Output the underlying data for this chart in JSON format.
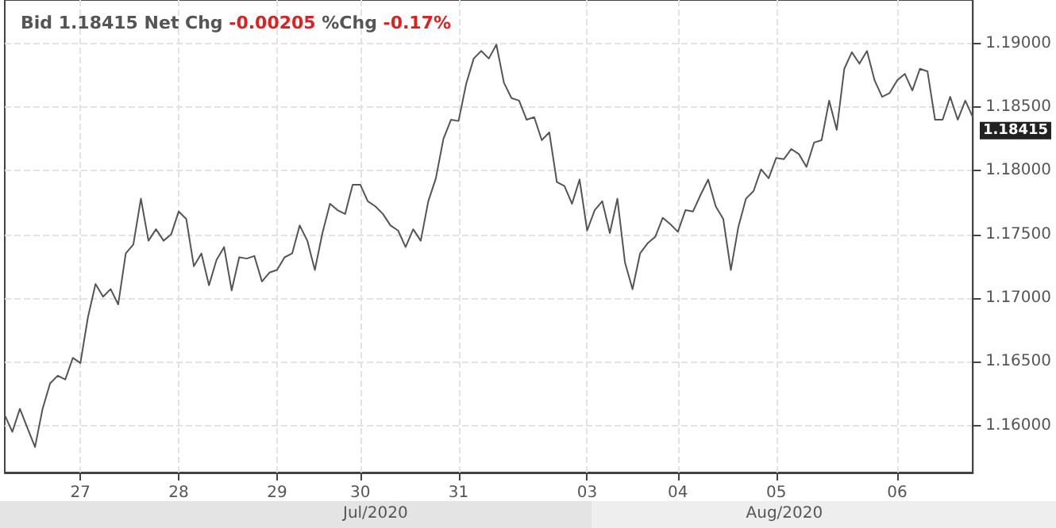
{
  "chart_data": {
    "type": "line",
    "title": "Bid 1.18415 Net Chg -0.00205 %Chg -0.17%",
    "categories": [
      null,
      null,
      null,
      null,
      null,
      null,
      null,
      null,
      null,
      null,
      "27",
      null,
      null,
      null,
      null,
      null,
      null,
      null,
      null,
      null,
      null,
      null,
      null,
      "28",
      null,
      null,
      null,
      null,
      null,
      null,
      null,
      null,
      null,
      null,
      null,
      null,
      "29",
      null,
      null,
      null,
      null,
      null,
      null,
      null,
      null,
      null,
      null,
      "30",
      null,
      null,
      null,
      null,
      null,
      null,
      null,
      null,
      null,
      null,
      null,
      null,
      "31",
      null,
      null,
      null,
      null,
      null,
      null,
      null,
      null,
      null,
      null,
      null,
      null,
      null,
      null,
      null,
      null,
      "03",
      null,
      null,
      null,
      null,
      null,
      null,
      null,
      null,
      null,
      null,
      null,
      "04",
      null,
      null,
      null,
      null,
      null,
      null,
      null,
      null,
      null,
      null,
      null,
      null,
      "05",
      null,
      null,
      null,
      null,
      null,
      null,
      null,
      null,
      null,
      null,
      null,
      null,
      null,
      null,
      null,
      "06",
      null,
      null,
      null,
      null,
      null,
      null,
      null,
      null,
      null,
      null
    ],
    "series": [
      {
        "color": "#555555",
        "values": [
          1.1608,
          1.1595,
          1.1613,
          1.1598,
          1.1583,
          1.1613,
          1.1633,
          1.1639,
          1.1636,
          1.1653,
          1.1649,
          1.1685,
          1.1711,
          1.1701,
          1.1707,
          1.1695,
          1.1735,
          1.1742,
          1.1778,
          1.1745,
          1.1754,
          1.1745,
          1.175,
          1.1768,
          1.1762,
          1.1725,
          1.1735,
          1.171,
          1.173,
          1.174,
          1.1706,
          1.1732,
          1.1731,
          1.1733,
          1.1713,
          1.172,
          1.1722,
          1.1732,
          1.1735,
          1.1757,
          1.1745,
          1.1722,
          1.1751,
          1.1774,
          1.1769,
          1.1766,
          1.1789,
          1.1789,
          1.1776,
          1.1772,
          1.1766,
          1.1757,
          1.1753,
          1.174,
          1.1754,
          1.1745,
          1.1776,
          1.1794,
          1.1825,
          1.184,
          1.1839,
          1.1868,
          1.1888,
          1.1894,
          1.1888,
          1.1899,
          1.1869,
          1.1857,
          1.1855,
          1.184,
          1.1842,
          1.1824,
          1.183,
          1.1791,
          1.1788,
          1.1774,
          1.1793,
          1.1753,
          1.1769,
          1.1776,
          1.1751,
          1.1778,
          1.1728,
          1.1707,
          1.1735,
          1.1743,
          1.1748,
          1.1763,
          1.1758,
          1.1752,
          1.1769,
          1.1768,
          1.1781,
          1.1793,
          1.1772,
          1.1762,
          1.1722,
          1.1756,
          1.1778,
          1.1784,
          1.1801,
          1.1794,
          1.181,
          1.1809,
          1.1817,
          1.1813,
          1.1803,
          1.1822,
          1.1824,
          1.1855,
          1.1832,
          1.188,
          1.1893,
          1.1884,
          1.1894,
          1.1871,
          1.1858,
          1.1861,
          1.1871,
          1.1876,
          1.1863,
          1.188,
          1.1878,
          1.184,
          1.184,
          1.1858,
          1.184,
          1.1855,
          1.1842
        ]
      }
    ],
    "ylim": [
      1.1563,
      1.1934
    ],
    "yticks": [
      {
        "value": 1.16,
        "label": "1.16000"
      },
      {
        "value": 1.165,
        "label": "1.16500"
      },
      {
        "value": 1.17,
        "label": "1.17000"
      },
      {
        "value": 1.175,
        "label": "1.17500"
      },
      {
        "value": 1.18,
        "label": "1.18000"
      },
      {
        "value": 1.185,
        "label": "1.18500"
      },
      {
        "value": 1.19,
        "label": "1.19000"
      }
    ],
    "annotations": [
      "Jul/2020",
      "Aug/2020",
      "1.18415"
    ],
    "grid": true
  }
}
